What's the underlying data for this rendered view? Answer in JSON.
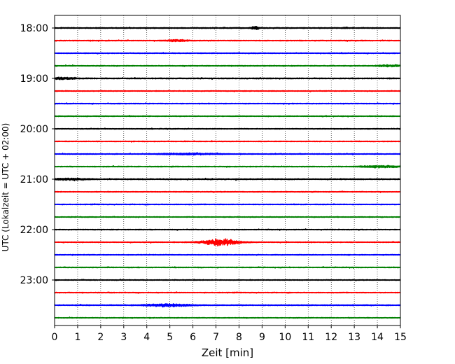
{
  "chart_data": {
    "type": "line",
    "title": "",
    "xlabel": "Zeit  [min]",
    "ylabel": "UTC (Lokalzeit = UTC + 02:00)",
    "xlim": [
      0,
      15
    ],
    "x_ticks": [
      0,
      1,
      2,
      3,
      4,
      5,
      6,
      7,
      8,
      9,
      10,
      11,
      12,
      13,
      14,
      15
    ],
    "x_tick_labels": [
      "0",
      "1",
      "2",
      "3",
      "4",
      "5",
      "6",
      "7",
      "8",
      "9",
      "10",
      "11",
      "12",
      "13",
      "14",
      "15"
    ],
    "y_axis": "time of day (UTC), one trace per 15 minutes, inverted",
    "y_tick_labels": [
      "18:00",
      "19:00",
      "20:00",
      "21:00",
      "22:00",
      "23:00"
    ],
    "grid": {
      "vertical": true,
      "horizontal": false,
      "style": "dotted"
    },
    "series": [
      {
        "start": "18:00",
        "color": "#000000",
        "noise": 0.6,
        "events": [
          {
            "t": 8.7,
            "amp": 1.6,
            "dur": 0.35
          },
          {
            "t": 12.6,
            "amp": 0.5,
            "dur": 0.3
          }
        ]
      },
      {
        "start": "18:15",
        "color": "#ff0000",
        "noise": 0.5,
        "events": [
          {
            "t": 5.3,
            "amp": 0.9,
            "dur": 1.0
          }
        ]
      },
      {
        "start": "18:30",
        "color": "#0000ff",
        "noise": 0.45,
        "events": []
      },
      {
        "start": "18:45",
        "color": "#008000",
        "noise": 0.5,
        "events": [
          {
            "t": 14.5,
            "amp": 1.1,
            "dur": 0.9
          }
        ]
      },
      {
        "start": "19:00",
        "color": "#000000",
        "noise": 0.6,
        "events": [
          {
            "t": 0.4,
            "amp": 1.2,
            "dur": 1.0
          }
        ]
      },
      {
        "start": "19:15",
        "color": "#ff0000",
        "noise": 0.45,
        "events": []
      },
      {
        "start": "19:30",
        "color": "#0000ff",
        "noise": 0.45,
        "events": []
      },
      {
        "start": "19:45",
        "color": "#008000",
        "noise": 0.45,
        "events": []
      },
      {
        "start": "20:00",
        "color": "#000000",
        "noise": 0.45,
        "events": []
      },
      {
        "start": "20:15",
        "color": "#ff0000",
        "noise": 0.45,
        "events": []
      },
      {
        "start": "20:30",
        "color": "#0000ff",
        "noise": 0.5,
        "events": [
          {
            "t": 5.8,
            "amp": 0.9,
            "dur": 2.4
          }
        ]
      },
      {
        "start": "20:45",
        "color": "#008000",
        "noise": 0.5,
        "events": [
          {
            "t": 14.1,
            "amp": 1.2,
            "dur": 1.6
          }
        ]
      },
      {
        "start": "21:00",
        "color": "#000000",
        "noise": 0.6,
        "events": [
          {
            "t": 0.6,
            "amp": 0.9,
            "dur": 1.6
          }
        ]
      },
      {
        "start": "21:15",
        "color": "#ff0000",
        "noise": 0.45,
        "events": []
      },
      {
        "start": "21:30",
        "color": "#0000ff",
        "noise": 0.45,
        "events": []
      },
      {
        "start": "21:45",
        "color": "#008000",
        "noise": 0.45,
        "events": []
      },
      {
        "start": "22:00",
        "color": "#000000",
        "noise": 0.45,
        "events": []
      },
      {
        "start": "22:15",
        "color": "#ff0000",
        "noise": 0.45,
        "events": [
          {
            "t": 7.2,
            "amp": 3.6,
            "dur": 1.6
          }
        ]
      },
      {
        "start": "22:30",
        "color": "#0000ff",
        "noise": 0.45,
        "events": []
      },
      {
        "start": "22:45",
        "color": "#008000",
        "noise": 0.45,
        "events": []
      },
      {
        "start": "23:00",
        "color": "#000000",
        "noise": 0.45,
        "events": []
      },
      {
        "start": "23:15",
        "color": "#ff0000",
        "noise": 0.45,
        "events": []
      },
      {
        "start": "23:30",
        "color": "#0000ff",
        "noise": 0.55,
        "events": [
          {
            "t": 4.9,
            "amp": 1.5,
            "dur": 1.9
          }
        ]
      },
      {
        "start": "23:45",
        "color": "#008000",
        "noise": 0.45,
        "events": []
      }
    ]
  }
}
